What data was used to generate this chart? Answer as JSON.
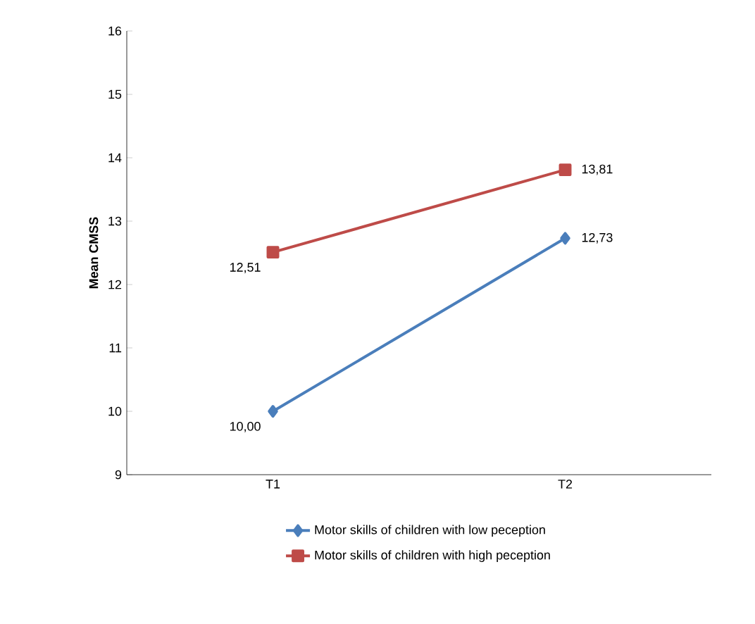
{
  "chart_data": {
    "type": "line",
    "ylabel": "Mean CMSS",
    "categories": [
      "T1",
      "T2"
    ],
    "series": [
      {
        "name": "Motor skills of children with low peception",
        "color": "#4a7ebb",
        "marker": "diamond",
        "values": [
          10.0,
          12.73
        ],
        "value_labels": [
          "10,00",
          "12,73"
        ]
      },
      {
        "name": "Motor skills of children with high peception",
        "color": "#be4b48",
        "marker": "square",
        "values": [
          12.51,
          13.81
        ],
        "value_labels": [
          "12,51",
          "13,81"
        ]
      }
    ],
    "ylim": [
      9,
      16
    ],
    "yticks": [
      9,
      10,
      11,
      12,
      13,
      14,
      15,
      16
    ],
    "grid": false,
    "legend": "bottom"
  }
}
